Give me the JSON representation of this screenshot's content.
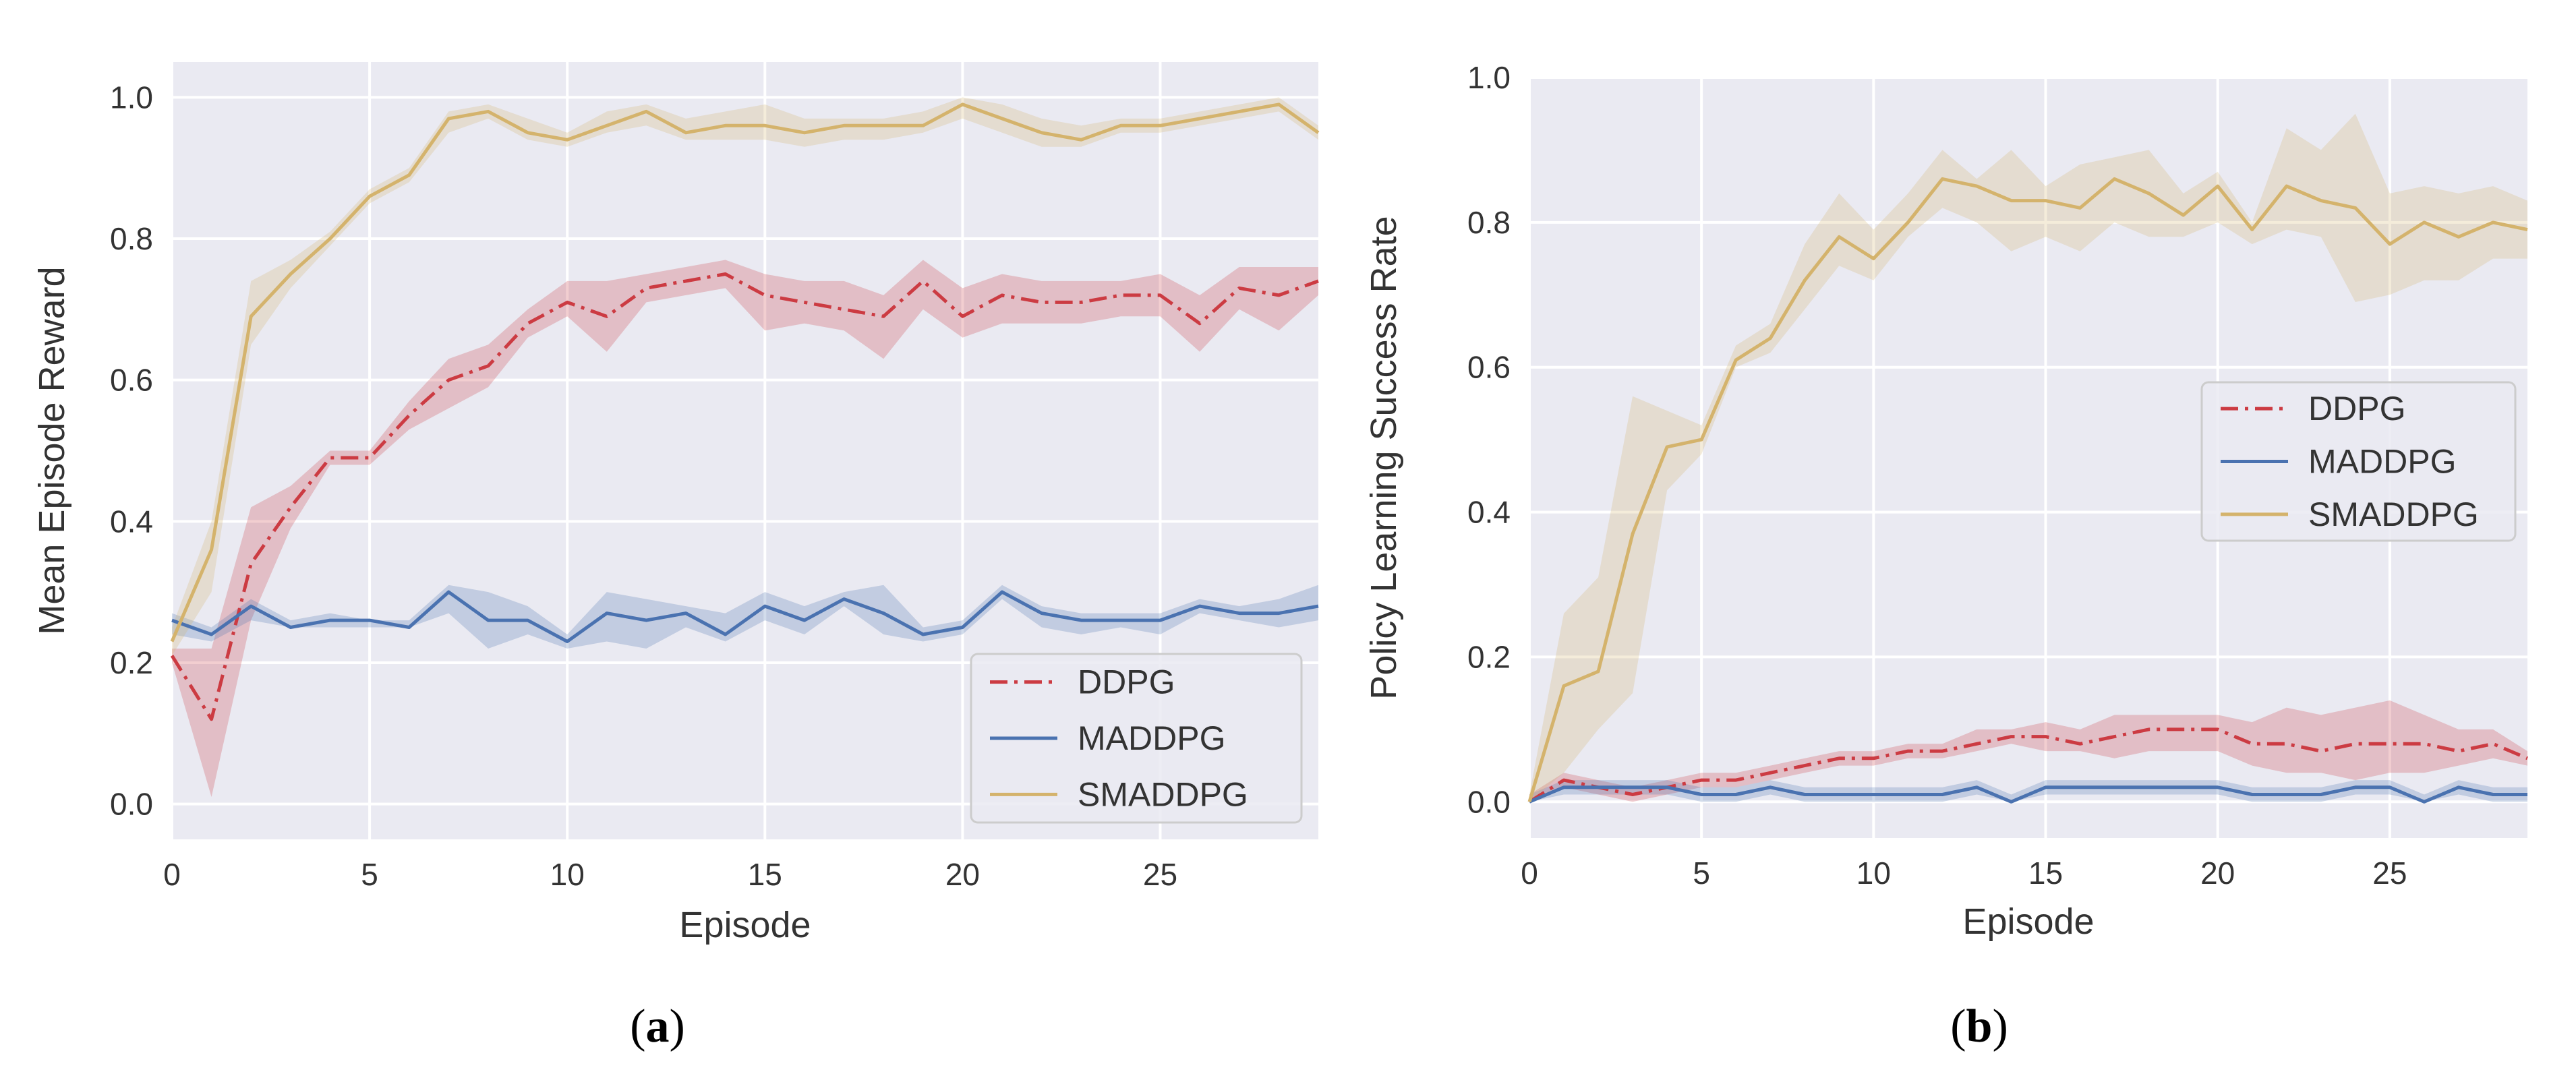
{
  "colors": {
    "background": "#eaeaf2",
    "grid": "#ffffff",
    "ddpg": "#cc3b42",
    "maddpg": "#4a72b0",
    "smaddpg": "#d4b36c"
  },
  "chart_data": [
    {
      "type": "line",
      "panel": "a",
      "caption_letter": "a",
      "xlabel": "Episode",
      "ylabel": "Mean Episode Reward",
      "xlim": [
        0,
        29
      ],
      "ylim": [
        -0.05,
        1.05
      ],
      "xticks": [
        0,
        5,
        10,
        15,
        20,
        25
      ],
      "yticks": [
        0.0,
        0.2,
        0.4,
        0.6,
        0.8,
        1.0
      ],
      "ytick_labels": [
        "0.0",
        "0.2",
        "0.4",
        "0.6",
        "0.8",
        "1.0"
      ],
      "legend_position": "lower-right",
      "x": [
        0,
        1,
        2,
        3,
        4,
        5,
        6,
        7,
        8,
        9,
        10,
        11,
        12,
        13,
        14,
        15,
        16,
        17,
        18,
        19,
        20,
        21,
        22,
        23,
        24,
        25,
        26,
        27,
        28,
        29
      ],
      "series": [
        {
          "name": "DDPG",
          "style": "dashdot",
          "color_key": "ddpg",
          "values": [
            0.21,
            0.12,
            0.34,
            0.42,
            0.49,
            0.49,
            0.55,
            0.6,
            0.62,
            0.68,
            0.71,
            0.69,
            0.73,
            0.74,
            0.75,
            0.72,
            0.71,
            0.7,
            0.69,
            0.74,
            0.69,
            0.72,
            0.71,
            0.71,
            0.72,
            0.72,
            0.68,
            0.73,
            0.72,
            0.74
          ],
          "lower": [
            0.2,
            0.01,
            0.26,
            0.39,
            0.48,
            0.48,
            0.53,
            0.56,
            0.59,
            0.66,
            0.69,
            0.64,
            0.71,
            0.72,
            0.73,
            0.67,
            0.68,
            0.67,
            0.63,
            0.7,
            0.66,
            0.68,
            0.68,
            0.68,
            0.69,
            0.69,
            0.64,
            0.7,
            0.67,
            0.72
          ],
          "upper": [
            0.22,
            0.22,
            0.42,
            0.45,
            0.5,
            0.5,
            0.57,
            0.63,
            0.65,
            0.7,
            0.74,
            0.74,
            0.75,
            0.76,
            0.77,
            0.75,
            0.74,
            0.74,
            0.72,
            0.77,
            0.73,
            0.75,
            0.74,
            0.74,
            0.74,
            0.75,
            0.72,
            0.76,
            0.76,
            0.76
          ]
        },
        {
          "name": "MADDPG",
          "style": "solid",
          "color_key": "maddpg",
          "values": [
            0.26,
            0.24,
            0.28,
            0.25,
            0.26,
            0.26,
            0.25,
            0.3,
            0.26,
            0.26,
            0.23,
            0.27,
            0.26,
            0.27,
            0.24,
            0.28,
            0.26,
            0.29,
            0.27,
            0.24,
            0.25,
            0.3,
            0.27,
            0.26,
            0.26,
            0.26,
            0.28,
            0.27,
            0.27,
            0.28
          ],
          "lower": [
            0.24,
            0.23,
            0.26,
            0.25,
            0.25,
            0.25,
            0.25,
            0.27,
            0.22,
            0.24,
            0.22,
            0.23,
            0.22,
            0.25,
            0.23,
            0.26,
            0.24,
            0.28,
            0.24,
            0.23,
            0.24,
            0.29,
            0.25,
            0.24,
            0.25,
            0.24,
            0.27,
            0.26,
            0.25,
            0.26
          ],
          "upper": [
            0.27,
            0.25,
            0.29,
            0.26,
            0.27,
            0.26,
            0.26,
            0.31,
            0.3,
            0.28,
            0.24,
            0.3,
            0.29,
            0.28,
            0.27,
            0.3,
            0.28,
            0.3,
            0.31,
            0.25,
            0.26,
            0.31,
            0.28,
            0.27,
            0.27,
            0.27,
            0.29,
            0.28,
            0.29,
            0.31
          ]
        },
        {
          "name": "SMADDPG",
          "style": "solid",
          "color_key": "smaddpg",
          "values": [
            0.23,
            0.36,
            0.69,
            0.75,
            0.8,
            0.86,
            0.89,
            0.97,
            0.98,
            0.95,
            0.94,
            0.96,
            0.98,
            0.95,
            0.96,
            0.96,
            0.95,
            0.96,
            0.96,
            0.96,
            0.99,
            0.97,
            0.95,
            0.94,
            0.96,
            0.96,
            0.97,
            0.98,
            0.99,
            0.95
          ],
          "lower": [
            0.21,
            0.3,
            0.65,
            0.73,
            0.79,
            0.85,
            0.88,
            0.95,
            0.97,
            0.94,
            0.93,
            0.95,
            0.96,
            0.94,
            0.94,
            0.94,
            0.93,
            0.94,
            0.94,
            0.95,
            0.97,
            0.95,
            0.93,
            0.93,
            0.95,
            0.95,
            0.96,
            0.97,
            0.98,
            0.94
          ],
          "upper": [
            0.25,
            0.4,
            0.74,
            0.77,
            0.81,
            0.87,
            0.9,
            0.98,
            0.99,
            0.97,
            0.95,
            0.98,
            0.99,
            0.97,
            0.98,
            0.99,
            0.97,
            0.97,
            0.97,
            0.98,
            1.0,
            0.99,
            0.97,
            0.96,
            0.97,
            0.97,
            0.98,
            0.99,
            1.0,
            0.96
          ]
        }
      ]
    },
    {
      "type": "line",
      "panel": "b",
      "caption_letter": "b",
      "xlabel": "Episode",
      "ylabel": "Policy Learning Success Rate",
      "xlim": [
        0,
        29
      ],
      "ylim": [
        -0.05,
        1.0
      ],
      "xticks": [
        0,
        5,
        10,
        15,
        20,
        25
      ],
      "yticks": [
        0.0,
        0.2,
        0.4,
        0.6,
        0.8,
        1.0
      ],
      "ytick_labels": [
        "0.0",
        "0.2",
        "0.4",
        "0.6",
        "0.8",
        "1.0"
      ],
      "legend_position": "center-right",
      "x": [
        0,
        1,
        2,
        3,
        4,
        5,
        6,
        7,
        8,
        9,
        10,
        11,
        12,
        13,
        14,
        15,
        16,
        17,
        18,
        19,
        20,
        21,
        22,
        23,
        24,
        25,
        26,
        27,
        28,
        29
      ],
      "series": [
        {
          "name": "DDPG",
          "style": "dashdot",
          "color_key": "ddpg",
          "values": [
            0.0,
            0.03,
            0.02,
            0.01,
            0.02,
            0.03,
            0.03,
            0.04,
            0.05,
            0.06,
            0.06,
            0.07,
            0.07,
            0.08,
            0.09,
            0.09,
            0.08,
            0.09,
            0.1,
            0.1,
            0.1,
            0.08,
            0.08,
            0.07,
            0.08,
            0.08,
            0.08,
            0.07,
            0.08,
            0.06
          ],
          "lower": [
            0.0,
            0.02,
            0.01,
            0.0,
            0.01,
            0.02,
            0.02,
            0.03,
            0.04,
            0.05,
            0.05,
            0.06,
            0.06,
            0.07,
            0.08,
            0.07,
            0.07,
            0.06,
            0.07,
            0.07,
            0.07,
            0.05,
            0.04,
            0.04,
            0.03,
            0.04,
            0.04,
            0.05,
            0.06,
            0.05
          ],
          "upper": [
            0.01,
            0.04,
            0.03,
            0.02,
            0.03,
            0.04,
            0.04,
            0.05,
            0.06,
            0.07,
            0.07,
            0.08,
            0.08,
            0.1,
            0.1,
            0.11,
            0.1,
            0.12,
            0.12,
            0.12,
            0.12,
            0.11,
            0.13,
            0.12,
            0.13,
            0.14,
            0.12,
            0.1,
            0.1,
            0.07
          ]
        },
        {
          "name": "MADDPG",
          "style": "solid",
          "color_key": "maddpg",
          "values": [
            0.0,
            0.02,
            0.02,
            0.02,
            0.02,
            0.01,
            0.01,
            0.02,
            0.01,
            0.01,
            0.01,
            0.01,
            0.01,
            0.02,
            0.0,
            0.02,
            0.02,
            0.02,
            0.02,
            0.02,
            0.02,
            0.01,
            0.01,
            0.01,
            0.02,
            0.02,
            0.0,
            0.02,
            0.01,
            0.01
          ],
          "lower": [
            0.0,
            0.01,
            0.01,
            0.01,
            0.01,
            0.0,
            0.0,
            0.01,
            0.0,
            0.0,
            0.0,
            0.0,
            0.0,
            0.01,
            0.0,
            0.01,
            0.01,
            0.01,
            0.01,
            0.01,
            0.01,
            0.0,
            0.0,
            0.0,
            0.01,
            0.01,
            0.0,
            0.01,
            0.0,
            0.0
          ],
          "upper": [
            0.01,
            0.03,
            0.03,
            0.03,
            0.03,
            0.02,
            0.02,
            0.03,
            0.02,
            0.02,
            0.02,
            0.02,
            0.02,
            0.03,
            0.01,
            0.03,
            0.03,
            0.03,
            0.03,
            0.03,
            0.03,
            0.02,
            0.02,
            0.02,
            0.03,
            0.03,
            0.01,
            0.03,
            0.02,
            0.02
          ]
        },
        {
          "name": "SMADDPG",
          "style": "solid",
          "color_key": "smaddpg",
          "values": [
            0.0,
            0.16,
            0.18,
            0.37,
            0.49,
            0.5,
            0.61,
            0.64,
            0.72,
            0.78,
            0.75,
            0.8,
            0.86,
            0.85,
            0.83,
            0.83,
            0.82,
            0.86,
            0.84,
            0.81,
            0.85,
            0.79,
            0.85,
            0.83,
            0.82,
            0.77,
            0.8,
            0.78,
            0.8,
            0.79
          ],
          "lower": [
            0.0,
            0.04,
            0.1,
            0.15,
            0.43,
            0.48,
            0.6,
            0.62,
            0.68,
            0.74,
            0.72,
            0.78,
            0.82,
            0.8,
            0.76,
            0.78,
            0.76,
            0.8,
            0.78,
            0.78,
            0.8,
            0.77,
            0.79,
            0.78,
            0.69,
            0.7,
            0.72,
            0.72,
            0.75,
            0.75
          ],
          "upper": [
            0.01,
            0.26,
            0.31,
            0.56,
            0.54,
            0.52,
            0.63,
            0.66,
            0.77,
            0.84,
            0.79,
            0.84,
            0.9,
            0.86,
            0.9,
            0.85,
            0.88,
            0.89,
            0.9,
            0.84,
            0.87,
            0.8,
            0.93,
            0.9,
            0.95,
            0.84,
            0.85,
            0.84,
            0.85,
            0.83
          ]
        }
      ]
    }
  ]
}
